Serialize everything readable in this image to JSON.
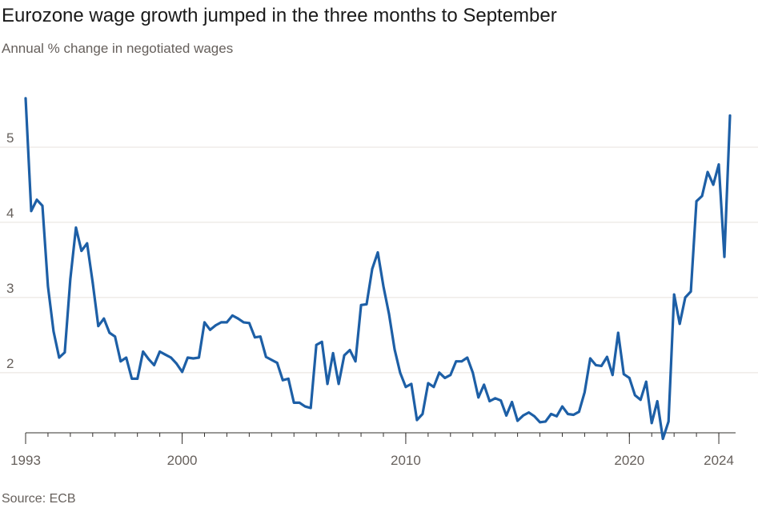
{
  "title": "Eurozone wage growth jumped in the three months to September",
  "subtitle": "Annual % change in negotiated wages",
  "source": "Source: ECB",
  "colors": {
    "line": "#1d5fa6",
    "grid": "#e7e2dc",
    "axis": "#33302e",
    "text": "#66605c"
  },
  "chart_data": {
    "type": "line",
    "title": "Eurozone wage growth jumped in the three months to September",
    "subtitle": "Annual % change in negotiated wages",
    "xlabel": "",
    "ylabel": "",
    "ylim": [
      1.2,
      6.0
    ],
    "xlim": [
      1993.0,
      2024.75
    ],
    "yticks": [
      2,
      3,
      4,
      5
    ],
    "ytick_labels": [
      "2",
      "3",
      "4",
      "5"
    ],
    "xticks": [
      1993,
      2000,
      2010,
      2020,
      2024
    ],
    "xtick_labels": [
      "1993",
      "2000",
      "2010",
      "2020",
      "2024"
    ],
    "grid": true,
    "series": [
      {
        "name": "Negotiated wages",
        "x": [
          1993.0,
          1993.25,
          1993.5,
          1993.75,
          1994.0,
          1994.25,
          1994.5,
          1994.75,
          1995.0,
          1995.25,
          1995.5,
          1995.75,
          1996.0,
          1996.25,
          1996.5,
          1996.75,
          1997.0,
          1997.25,
          1997.5,
          1997.75,
          1998.0,
          1998.25,
          1998.5,
          1998.75,
          1999.0,
          1999.25,
          1999.5,
          1999.75,
          2000.0,
          2000.25,
          2000.5,
          2000.75,
          2001.0,
          2001.25,
          2001.5,
          2001.75,
          2002.0,
          2002.25,
          2002.5,
          2002.75,
          2003.0,
          2003.25,
          2003.5,
          2003.75,
          2004.0,
          2004.25,
          2004.5,
          2004.75,
          2005.0,
          2005.25,
          2005.5,
          2005.75,
          2006.0,
          2006.25,
          2006.5,
          2006.75,
          2007.0,
          2007.25,
          2007.5,
          2007.75,
          2008.0,
          2008.25,
          2008.5,
          2008.75,
          2009.0,
          2009.25,
          2009.5,
          2009.75,
          2010.0,
          2010.25,
          2010.5,
          2010.75,
          2011.0,
          2011.25,
          2011.5,
          2011.75,
          2012.0,
          2012.25,
          2012.5,
          2012.75,
          2013.0,
          2013.25,
          2013.5,
          2013.75,
          2014.0,
          2014.25,
          2014.5,
          2014.75,
          2015.0,
          2015.25,
          2015.5,
          2015.75,
          2016.0,
          2016.25,
          2016.5,
          2016.75,
          2017.0,
          2017.25,
          2017.5,
          2017.75,
          2018.0,
          2018.25,
          2018.5,
          2018.75,
          2019.0,
          2019.25,
          2019.5,
          2019.75,
          2020.0,
          2020.25,
          2020.5,
          2020.75,
          2021.0,
          2021.25,
          2021.5,
          2021.75,
          2022.0,
          2022.25,
          2022.5,
          2022.75,
          2023.0,
          2023.25,
          2023.5,
          2023.75,
          2024.0,
          2024.25,
          2024.5
        ],
        "values": [
          5.65,
          4.15,
          4.3,
          4.22,
          3.15,
          2.55,
          2.2,
          2.27,
          3.25,
          3.93,
          3.62,
          3.72,
          3.2,
          2.62,
          2.72,
          2.53,
          2.48,
          2.15,
          2.2,
          1.92,
          1.92,
          2.28,
          2.18,
          2.1,
          2.28,
          2.24,
          2.2,
          2.12,
          2.01,
          2.2,
          2.19,
          2.2,
          2.67,
          2.57,
          2.63,
          2.67,
          2.67,
          2.76,
          2.72,
          2.67,
          2.66,
          2.47,
          2.48,
          2.21,
          2.17,
          2.13,
          1.9,
          1.92,
          1.6,
          1.6,
          1.55,
          1.53,
          2.37,
          2.41,
          1.85,
          2.26,
          1.85,
          2.23,
          2.3,
          2.15,
          2.9,
          2.91,
          3.38,
          3.6,
          3.15,
          2.78,
          2.31,
          2.0,
          1.81,
          1.85,
          1.37,
          1.45,
          1.86,
          1.81,
          2.0,
          1.93,
          1.97,
          2.15,
          2.15,
          2.2,
          2.0,
          1.67,
          1.84,
          1.62,
          1.66,
          1.63,
          1.43,
          1.61,
          1.36,
          1.43,
          1.47,
          1.42,
          1.34,
          1.35,
          1.45,
          1.42,
          1.55,
          1.45,
          1.44,
          1.48,
          1.74,
          2.19,
          2.1,
          2.09,
          2.21,
          1.97,
          2.53,
          1.98,
          1.93,
          1.7,
          1.64,
          1.88,
          1.33,
          1.62,
          1.12,
          1.35,
          3.04,
          2.65,
          3.0,
          3.08,
          4.28,
          4.35,
          4.67,
          4.5,
          4.77,
          3.54,
          5.42
        ]
      }
    ]
  }
}
